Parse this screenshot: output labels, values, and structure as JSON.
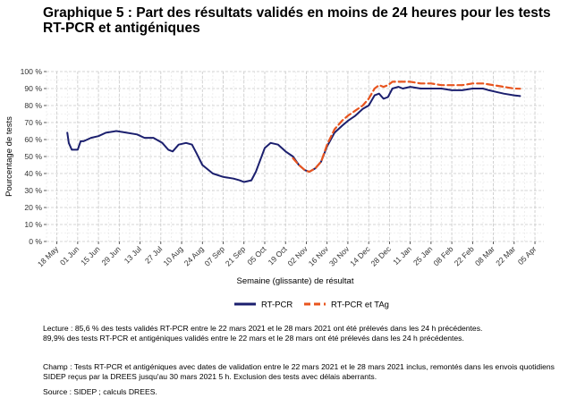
{
  "chart_data": {
    "type": "line",
    "title": "Graphique 5 : Part des résultats validés en moins de 24 heures pour les tests RT-PCR et antigéniques",
    "xlabel": "Semaine (glissante) de résultat",
    "ylabel": "Pourcentage de tests",
    "ylim": [
      0,
      100
    ],
    "y_ticks": [
      "0 %",
      "10 %",
      "20 %",
      "30 %",
      "40 %",
      "50 %",
      "60 %",
      "70 %",
      "80 %",
      "90 %",
      "100 %"
    ],
    "x_ticks": [
      "18 May",
      "01 Jun",
      "15 Jun",
      "29 Jun",
      "13 Jul",
      "27 Jul",
      "10 Aug",
      "24 Aug",
      "07 Sep",
      "21 Sep",
      "05 Oct",
      "19 Oct",
      "02 Nov",
      "16 Nov",
      "30 Nov",
      "14 Dec",
      "28 Dec",
      "11 Jan",
      "25 Jan",
      "08 Feb",
      "22 Feb",
      "08 Mar",
      "22 Mar",
      "05 Apr"
    ],
    "x_tick_dates": [
      "2020-05-18",
      "2020-06-01",
      "2020-06-15",
      "2020-06-29",
      "2020-07-13",
      "2020-07-27",
      "2020-08-10",
      "2020-08-24",
      "2020-09-07",
      "2020-09-21",
      "2020-10-05",
      "2020-10-19",
      "2020-11-02",
      "2020-11-16",
      "2020-11-30",
      "2020-12-14",
      "2020-12-28",
      "2021-01-11",
      "2021-01-25",
      "2021-02-08",
      "2021-02-22",
      "2021-03-08",
      "2021-03-22",
      "2021-04-05"
    ],
    "grid": true,
    "legend_position": "bottom",
    "series": [
      {
        "name": "RT-PCR",
        "color": "#1b1f6e",
        "dash": false,
        "points": [
          [
            "2020-05-25",
            64
          ],
          [
            "2020-05-26",
            58
          ],
          [
            "2020-05-28",
            54
          ],
          [
            "2020-06-01",
            54
          ],
          [
            "2020-06-03",
            59
          ],
          [
            "2020-06-05",
            59
          ],
          [
            "2020-06-10",
            61
          ],
          [
            "2020-06-15",
            62
          ],
          [
            "2020-06-20",
            64
          ],
          [
            "2020-06-27",
            65
          ],
          [
            "2020-07-04",
            64
          ],
          [
            "2020-07-11",
            63
          ],
          [
            "2020-07-16",
            61
          ],
          [
            "2020-07-22",
            61
          ],
          [
            "2020-07-28",
            58
          ],
          [
            "2020-08-01",
            54
          ],
          [
            "2020-08-04",
            53
          ],
          [
            "2020-08-08",
            57
          ],
          [
            "2020-08-13",
            58
          ],
          [
            "2020-08-17",
            57
          ],
          [
            "2020-08-20",
            52
          ],
          [
            "2020-08-24",
            45
          ],
          [
            "2020-08-31",
            40
          ],
          [
            "2020-09-07",
            38
          ],
          [
            "2020-09-14",
            37
          ],
          [
            "2020-09-18",
            36
          ],
          [
            "2020-09-21",
            35
          ],
          [
            "2020-09-26",
            36
          ],
          [
            "2020-09-29",
            41
          ],
          [
            "2020-10-02",
            48
          ],
          [
            "2020-10-05",
            55
          ],
          [
            "2020-10-09",
            58
          ],
          [
            "2020-10-14",
            57
          ],
          [
            "2020-10-19",
            53
          ],
          [
            "2020-10-24",
            50
          ],
          [
            "2020-10-28",
            45
          ],
          [
            "2020-11-01",
            42
          ],
          [
            "2020-11-04",
            41
          ],
          [
            "2020-11-08",
            43
          ],
          [
            "2020-11-12",
            47
          ],
          [
            "2020-11-16",
            56
          ],
          [
            "2020-11-21",
            64
          ],
          [
            "2020-11-26",
            68
          ],
          [
            "2020-11-30",
            71
          ],
          [
            "2020-12-05",
            74
          ],
          [
            "2020-12-10",
            78
          ],
          [
            "2020-12-14",
            80
          ],
          [
            "2020-12-18",
            86
          ],
          [
            "2020-12-21",
            87
          ],
          [
            "2020-12-24",
            84
          ],
          [
            "2020-12-27",
            85
          ],
          [
            "2020-12-30",
            90
          ],
          [
            "2021-01-03",
            91
          ],
          [
            "2021-01-06",
            90
          ],
          [
            "2021-01-11",
            91
          ],
          [
            "2021-01-18",
            90
          ],
          [
            "2021-01-25",
            90
          ],
          [
            "2021-02-01",
            90
          ],
          [
            "2021-02-08",
            89
          ],
          [
            "2021-02-15",
            89
          ],
          [
            "2021-02-22",
            90
          ],
          [
            "2021-03-01",
            90
          ],
          [
            "2021-03-05",
            89
          ],
          [
            "2021-03-10",
            88
          ],
          [
            "2021-03-15",
            87
          ],
          [
            "2021-03-22",
            86
          ],
          [
            "2021-03-26",
            85.6
          ]
        ]
      },
      {
        "name": "RT-PCR et TAg",
        "color": "#e8541e",
        "dash": true,
        "points": [
          [
            "2020-10-24",
            49
          ],
          [
            "2020-10-28",
            45
          ],
          [
            "2020-11-01",
            42
          ],
          [
            "2020-11-04",
            41
          ],
          [
            "2020-11-08",
            43
          ],
          [
            "2020-11-12",
            47
          ],
          [
            "2020-11-16",
            57
          ],
          [
            "2020-11-21",
            66
          ],
          [
            "2020-11-26",
            71
          ],
          [
            "2020-11-30",
            74
          ],
          [
            "2020-12-05",
            77
          ],
          [
            "2020-12-10",
            80
          ],
          [
            "2020-12-14",
            84
          ],
          [
            "2020-12-18",
            90
          ],
          [
            "2020-12-21",
            92
          ],
          [
            "2020-12-24",
            91
          ],
          [
            "2020-12-27",
            92
          ],
          [
            "2020-12-30",
            94
          ],
          [
            "2021-01-03",
            94
          ],
          [
            "2021-01-11",
            94
          ],
          [
            "2021-01-18",
            93
          ],
          [
            "2021-01-25",
            93
          ],
          [
            "2021-02-01",
            92
          ],
          [
            "2021-02-08",
            92
          ],
          [
            "2021-02-15",
            92
          ],
          [
            "2021-02-22",
            93
          ],
          [
            "2021-03-01",
            93
          ],
          [
            "2021-03-08",
            92
          ],
          [
            "2021-03-15",
            91
          ],
          [
            "2021-03-22",
            90
          ],
          [
            "2021-03-26",
            89.9
          ]
        ]
      }
    ]
  },
  "notes": {
    "lecture_1": "Lecture : 85,6 % des tests validés RT-PCR entre le 22 mars 2021 et le 28 mars 2021 ont été prélevés dans les 24 h précédentes.",
    "lecture_2": "89,9% des tests RT-PCR et antigéniques validés entre le 22 mars et le 28 mars ont été prélevés dans les 24 h précédentes.",
    "champ": "Champ : Tests RT-PCR et antigéniques avec dates de validation entre le 22 mars 2021 et le 28 mars 2021 inclus, remontés dans les envois quotidiens SIDEP reçus par la DREES jusqu'au 30 mars 2021 5 h. Exclusion des tests avec délais aberrants.",
    "source": "Source : SIDEP ; calculs DREES."
  }
}
